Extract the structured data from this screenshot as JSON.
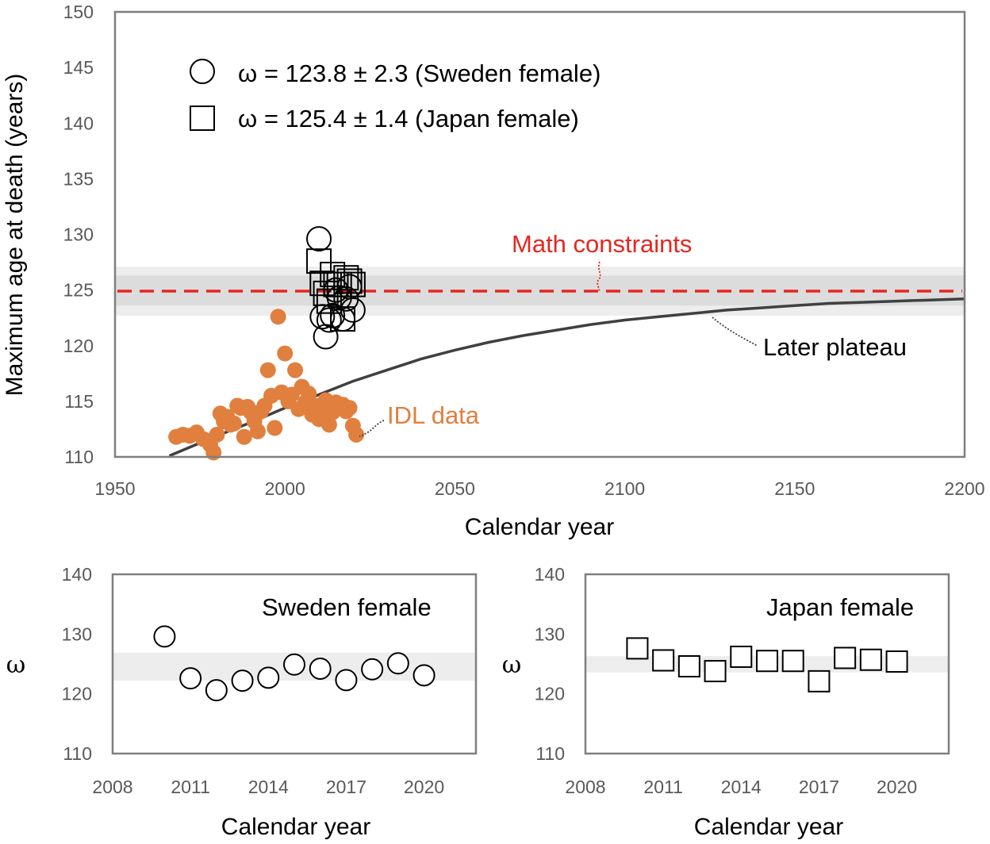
{
  "colors": {
    "idl": "#E07F3E",
    "math": "#E8251F",
    "plateau": "#404040",
    "band_outer": "#EDEDED",
    "band_inner": "#DCDCDC",
    "axis": "#7F7F7F",
    "tick": "#595959"
  },
  "chart_data": [
    {
      "id": "main",
      "type": "scatter",
      "xlabel": "Calendar year",
      "ylabel": "Maximum age at death (years)",
      "xlim": [
        1950,
        2200
      ],
      "ylim": [
        110,
        150
      ],
      "xticks": [
        1950,
        2000,
        2050,
        2100,
        2150,
        2200
      ],
      "yticks": [
        110,
        115,
        120,
        125,
        130,
        135,
        140,
        145,
        150
      ],
      "legend": [
        {
          "marker": "circle",
          "label": "ω = 123.8 ± 2.3 (Sweden female)"
        },
        {
          "marker": "square",
          "label": "ω = 125.4 ± 1.4 (Japan female)"
        }
      ],
      "bands": {
        "outer": [
          122.7,
          127.1
        ],
        "inner": [
          123.6,
          126.3
        ]
      },
      "math_constraint": {
        "y": 124.9,
        "label": "Math constraints"
      },
      "later_plateau": {
        "label": "Later plateau",
        "x": [
          1966,
          1980,
          1990,
          2000,
          2010,
          2020,
          2030,
          2040,
          2050,
          2060,
          2070,
          2080,
          2090,
          2100,
          2110,
          2120,
          2130,
          2140,
          2150,
          2160,
          2170,
          2180,
          2190,
          2200
        ],
        "y": [
          110.1,
          111.9,
          113.1,
          114.4,
          115.6,
          116.8,
          117.8,
          118.8,
          119.6,
          120.3,
          120.9,
          121.4,
          121.9,
          122.3,
          122.6,
          122.9,
          123.2,
          123.4,
          123.6,
          123.8,
          123.9,
          124.0,
          124.1,
          124.2
        ]
      },
      "idl_data": {
        "label": "IDL data",
        "x": [
          1968,
          1970,
          1972,
          1974,
          1976,
          1978,
          1979,
          1980,
          1981,
          1982,
          1983,
          1984,
          1985,
          1986,
          1987,
          1988,
          1989,
          1990,
          1991,
          1992,
          1993,
          1994,
          1995,
          1996,
          1997,
          1998,
          1999,
          2000,
          2001,
          2002,
          2003,
          2004,
          2005,
          2006,
          2007,
          2008,
          2009,
          2010,
          2011,
          2012,
          2013,
          2014,
          2015,
          2016,
          2017,
          2018,
          2019,
          2020,
          2021
        ],
        "y": [
          111.8,
          112.0,
          111.9,
          112.2,
          111.6,
          111.1,
          110.4,
          112.0,
          113.9,
          113.2,
          113.6,
          112.9,
          113.0,
          114.6,
          114.4,
          111.8,
          114.5,
          114.0,
          113.2,
          112.3,
          114.1,
          114.6,
          117.8,
          115.5,
          112.6,
          122.6,
          115.8,
          119.3,
          115.0,
          115.6,
          117.8,
          114.3,
          116.3,
          114.9,
          115.7,
          113.8,
          114.6,
          113.4,
          113.9,
          115.1,
          112.9,
          114.0,
          114.9,
          114.4,
          114.7,
          114.1,
          114.4,
          112.8,
          112.0
        ]
      },
      "sweden_points": {
        "x": [
          2010,
          2011,
          2012,
          2013,
          2014,
          2015,
          2016,
          2017,
          2018,
          2019,
          2020
        ],
        "y": [
          129.6,
          122.6,
          120.8,
          122.3,
          122.7,
          125.0,
          124.3,
          122.4,
          124.2,
          125.3,
          123.2
        ]
      },
      "japan_points": {
        "x": [
          2010,
          2011,
          2012,
          2013,
          2014,
          2015,
          2016,
          2017,
          2018,
          2019,
          2020
        ],
        "y": [
          127.6,
          125.6,
          124.7,
          124.0,
          126.4,
          125.5,
          125.5,
          122.4,
          126.1,
          125.8,
          125.5
        ]
      },
      "sweden_mean_marker": {
        "x": 2016,
        "y": 125.0
      }
    },
    {
      "id": "sweden",
      "type": "scatter",
      "title": "Sweden female",
      "xlabel": "Calendar year",
      "ylabel": "ω",
      "xlim": [
        2008,
        2022
      ],
      "ylim": [
        110,
        140
      ],
      "xticks": [
        2008,
        2011,
        2014,
        2017,
        2020
      ],
      "yticks": [
        110,
        120,
        130,
        140
      ],
      "band": [
        122.2,
        126.9
      ],
      "marker": "circle",
      "x": [
        2010,
        2011,
        2012,
        2013,
        2014,
        2015,
        2016,
        2017,
        2018,
        2019,
        2020
      ],
      "y": [
        129.6,
        122.6,
        120.6,
        122.2,
        122.7,
        124.9,
        124.2,
        122.3,
        124.1,
        125.1,
        123.1
      ]
    },
    {
      "id": "japan",
      "type": "scatter",
      "title": "Japan female",
      "xlabel": "Calendar year",
      "ylabel": "ω",
      "xlim": [
        2008,
        2022
      ],
      "ylim": [
        110,
        140
      ],
      "xticks": [
        2008,
        2011,
        2014,
        2017,
        2020
      ],
      "yticks": [
        110,
        120,
        130,
        140
      ],
      "band": [
        123.6,
        126.3
      ],
      "marker": "square",
      "x": [
        2010,
        2011,
        2012,
        2013,
        2014,
        2015,
        2016,
        2017,
        2018,
        2019,
        2020
      ],
      "y": [
        127.6,
        125.6,
        124.6,
        123.8,
        126.2,
        125.5,
        125.5,
        122.1,
        126.0,
        125.7,
        125.4
      ]
    }
  ]
}
